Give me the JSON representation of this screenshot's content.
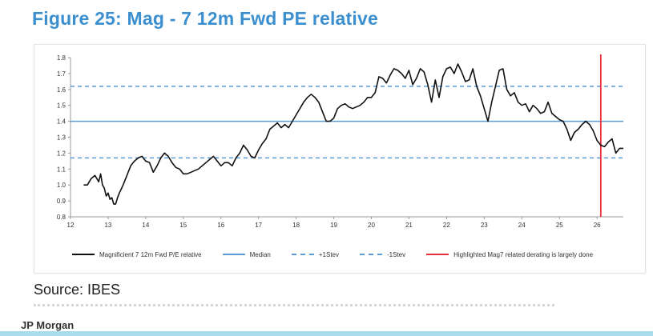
{
  "title": "Figure 25: Mag - 7 12m Fwd PE relative",
  "source": "Source: IBES",
  "credit": "JP Morgan",
  "colors": {
    "title": "#3c8fcf",
    "series": "#111111",
    "bands": "#5b9bd5",
    "highlight": "#e8303a"
  },
  "chart_data": {
    "type": "line",
    "title": "",
    "xlabel": "",
    "ylabel": "",
    "xlim": [
      12,
      26.7
    ],
    "ylim": [
      0.8,
      1.8
    ],
    "x_ticks": [
      12,
      13,
      14,
      15,
      16,
      17,
      18,
      19,
      20,
      21,
      22,
      23,
      24,
      25,
      26
    ],
    "y_ticks": [
      0.8,
      0.9,
      1.0,
      1.1,
      1.2,
      1.3,
      1.4,
      1.5,
      1.6,
      1.7,
      1.8
    ],
    "legend_position": "bottom",
    "series": [
      {
        "name": "Magnificient 7 12m Fwd P/E relative",
        "x": [
          12.35,
          12.45,
          12.55,
          12.65,
          12.75,
          12.8,
          12.85,
          12.9,
          12.95,
          13.0,
          13.05,
          13.1,
          13.15,
          13.2,
          13.25,
          13.3,
          13.4,
          13.5,
          13.6,
          13.7,
          13.8,
          13.9,
          14.0,
          14.1,
          14.2,
          14.3,
          14.4,
          14.5,
          14.6,
          14.7,
          14.8,
          14.9,
          15.0,
          15.1,
          15.2,
          15.3,
          15.4,
          15.5,
          15.6,
          15.7,
          15.8,
          15.9,
          16.0,
          16.1,
          16.2,
          16.3,
          16.4,
          16.5,
          16.6,
          16.7,
          16.8,
          16.9,
          17.0,
          17.1,
          17.2,
          17.3,
          17.4,
          17.5,
          17.6,
          17.7,
          17.8,
          17.9,
          18.0,
          18.1,
          18.2,
          18.3,
          18.4,
          18.5,
          18.6,
          18.7,
          18.8,
          18.9,
          19.0,
          19.1,
          19.2,
          19.3,
          19.4,
          19.5,
          19.6,
          19.7,
          19.8,
          19.9,
          20.0,
          20.1,
          20.2,
          20.3,
          20.4,
          20.5,
          20.6,
          20.7,
          20.8,
          20.9,
          21.0,
          21.1,
          21.2,
          21.3,
          21.4,
          21.5,
          21.6,
          21.7,
          21.8,
          21.9,
          22.0,
          22.1,
          22.2,
          22.3,
          22.4,
          22.5,
          22.6,
          22.7,
          22.8,
          22.9,
          23.0,
          23.1,
          23.2,
          23.3,
          23.4,
          23.5,
          23.6,
          23.7,
          23.8,
          23.9,
          24.0,
          24.1,
          24.2,
          24.3,
          24.4,
          24.5,
          24.6,
          24.7,
          24.8,
          24.9,
          25.0,
          25.1,
          25.2,
          25.3,
          25.4,
          25.5,
          25.6,
          25.7,
          25.8,
          25.9,
          26.0,
          26.1,
          26.2,
          26.3,
          26.4,
          26.5,
          26.6,
          26.7
        ],
        "y": [
          1.0,
          1.0,
          1.04,
          1.06,
          1.02,
          1.07,
          1.0,
          0.98,
          0.93,
          0.95,
          0.91,
          0.92,
          0.88,
          0.88,
          0.92,
          0.95,
          1.0,
          1.06,
          1.12,
          1.15,
          1.17,
          1.18,
          1.15,
          1.14,
          1.08,
          1.12,
          1.17,
          1.2,
          1.18,
          1.14,
          1.11,
          1.1,
          1.07,
          1.07,
          1.08,
          1.09,
          1.1,
          1.12,
          1.14,
          1.16,
          1.18,
          1.15,
          1.12,
          1.14,
          1.14,
          1.12,
          1.17,
          1.2,
          1.25,
          1.22,
          1.18,
          1.17,
          1.22,
          1.26,
          1.29,
          1.35,
          1.37,
          1.39,
          1.36,
          1.38,
          1.36,
          1.4,
          1.44,
          1.48,
          1.52,
          1.55,
          1.57,
          1.55,
          1.52,
          1.46,
          1.4,
          1.4,
          1.42,
          1.48,
          1.5,
          1.51,
          1.49,
          1.48,
          1.49,
          1.5,
          1.52,
          1.55,
          1.55,
          1.58,
          1.68,
          1.67,
          1.64,
          1.69,
          1.73,
          1.72,
          1.7,
          1.67,
          1.72,
          1.63,
          1.67,
          1.73,
          1.71,
          1.63,
          1.52,
          1.66,
          1.55,
          1.68,
          1.73,
          1.74,
          1.7,
          1.76,
          1.71,
          1.65,
          1.66,
          1.73,
          1.62,
          1.56,
          1.48,
          1.4,
          1.52,
          1.62,
          1.72,
          1.73,
          1.6,
          1.56,
          1.58,
          1.52,
          1.5,
          1.51,
          1.46,
          1.5,
          1.48,
          1.45,
          1.46,
          1.52,
          1.45,
          1.43,
          1.41,
          1.4,
          1.35,
          1.28,
          1.33,
          1.35,
          1.38,
          1.4,
          1.38,
          1.34,
          1.28,
          1.25,
          1.24,
          1.27,
          1.29,
          1.2,
          1.23,
          1.23
        ]
      }
    ],
    "reference_lines": [
      {
        "name": "Median",
        "axis": "y",
        "value": 1.4,
        "style": "solid"
      },
      {
        "name": "+1Stev",
        "axis": "y",
        "value": 1.62,
        "style": "dashed"
      },
      {
        "name": "-1Stev",
        "axis": "y",
        "value": 1.17,
        "style": "dashed"
      },
      {
        "name": "Highlighted Mag7 related derating is largely done",
        "axis": "x",
        "value": 26.1,
        "style": "solid"
      }
    ]
  }
}
